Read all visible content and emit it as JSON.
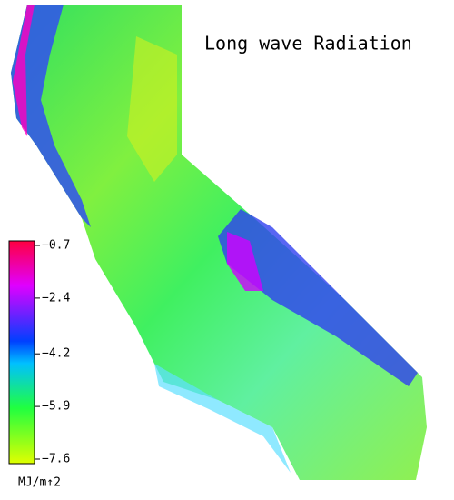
{
  "title": "Long wave Radiation",
  "colorbar": {
    "ticks": [
      {
        "value": -0.7,
        "label": "−0.7"
      },
      {
        "value": -2.4,
        "label": "−2.4"
      },
      {
        "value": -4.2,
        "label": "−4.2"
      },
      {
        "value": -5.9,
        "label": "−5.9"
      },
      {
        "value": -7.6,
        "label": "−7.6"
      }
    ],
    "unit": "MJ/m↑2"
  }
}
